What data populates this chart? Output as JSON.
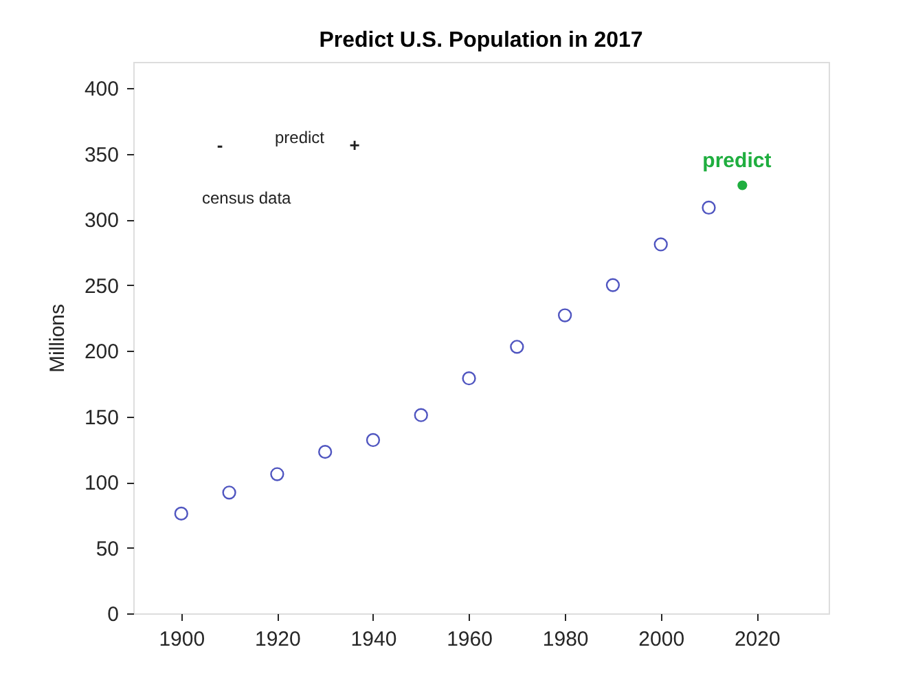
{
  "chart_data": {
    "type": "scatter",
    "title": "Predict U.S. Population in 2017",
    "ylabel": "Millions",
    "x": [
      1900,
      1910,
      1920,
      1930,
      1940,
      1950,
      1960,
      1970,
      1980,
      1990,
      2000,
      2010
    ],
    "series": [
      {
        "color": "#4f55c0",
        "marker": "circle",
        "values": [
          76,
          92,
          106,
          123,
          132,
          151,
          179,
          203,
          227,
          250,
          281,
          309
        ]
      },
      {
        "color": "#1fae3f",
        "marker": "circle",
        "x": [
          2017
        ],
        "values": [
          326
        ]
      }
    ],
    "annotations": [
      {
        "text": "predict",
        "x": 2017,
        "y": 326
      },
      "-",
      "predict",
      "+",
      "census data"
    ],
    "xlim": [
      1890,
      2035
    ],
    "xticks": [
      1900,
      1920,
      1940,
      1960,
      1980,
      2000,
      2020
    ],
    "ylim": [
      0,
      420
    ],
    "yticks": [
      0,
      50,
      100,
      150,
      200,
      250,
      300,
      350,
      400
    ],
    "grid": false
  }
}
